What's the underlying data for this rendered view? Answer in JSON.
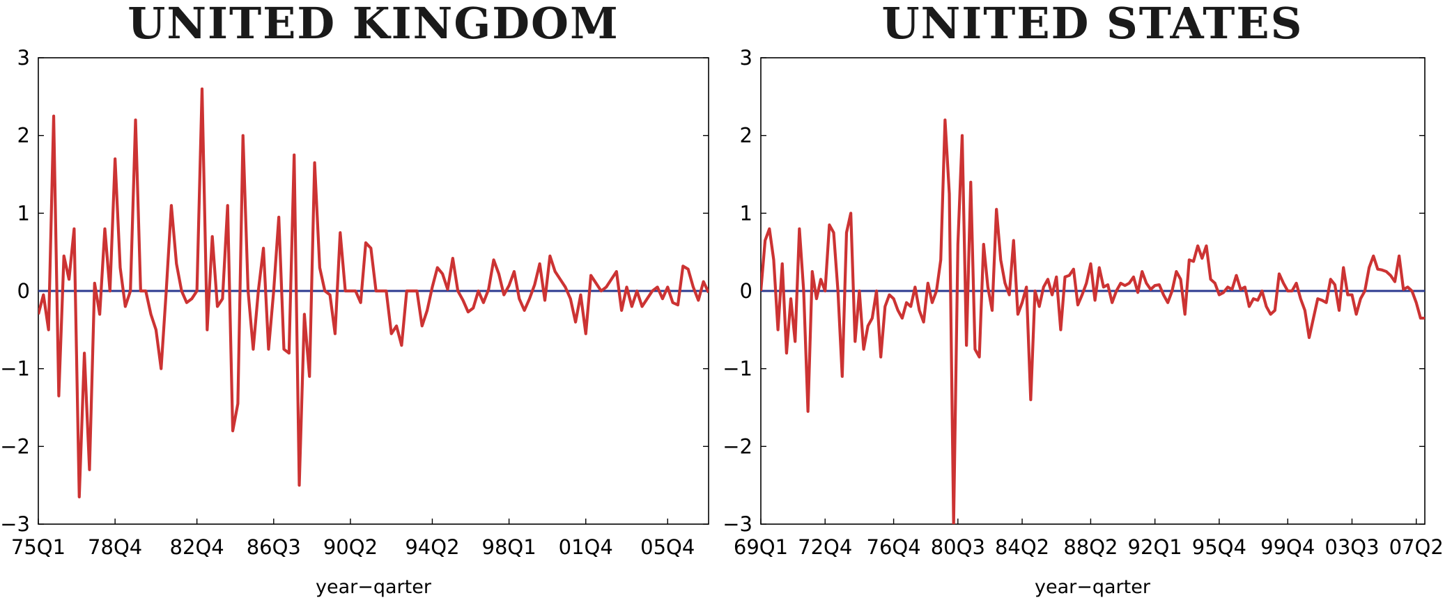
{
  "colors": {
    "series": "#cc3333",
    "zero_line": "#2b3a8f",
    "frame": "#000000"
  },
  "chart_data": [
    {
      "type": "line",
      "title": "UNITED KINGDOM",
      "xlabel": "year−qarter",
      "ylabel": "",
      "ylim": [
        -3,
        3
      ],
      "yticks": [
        "3",
        "2",
        "1",
        "0",
        "−1",
        "−2",
        "−3"
      ],
      "ytick_values": [
        3,
        2,
        1,
        0,
        -1,
        -2,
        -3
      ],
      "xtick_labels": [
        "75Q1",
        "78Q4",
        "82Q4",
        "86Q3",
        "90Q2",
        "94Q2",
        "98Q1",
        "01Q4",
        "05Q4"
      ],
      "xtick_index": [
        0,
        15,
        31,
        46,
        61,
        77,
        92,
        107,
        123
      ],
      "zero_line": 0,
      "series": [
        {
          "values": [
            -0.3,
            -0.05,
            -0.5,
            2.25,
            -1.35,
            0.45,
            0.15,
            0.8,
            -2.65,
            -0.8,
            -2.3,
            0.1,
            -0.3,
            0.8,
            0.0,
            1.7,
            0.3,
            -0.2,
            0.0,
            2.2,
            0.0,
            0.0,
            -0.3,
            -0.5,
            -1.0,
            0.0,
            1.1,
            0.35,
            0.0,
            -0.15,
            -0.1,
            0.0,
            2.6,
            -0.5,
            0.7,
            -0.2,
            -0.1,
            1.1,
            -1.8,
            -1.45,
            2.0,
            0.0,
            -0.75,
            0.0,
            0.55,
            -0.75,
            0.0,
            0.95,
            -0.75,
            -0.8,
            1.75,
            -2.5,
            -0.3,
            -1.1,
            1.65,
            0.3,
            0.0,
            -0.05,
            -0.55,
            0.75,
            0.0,
            0.0,
            0.0,
            -0.15,
            0.62,
            0.55,
            0.0,
            0.0,
            0.0,
            -0.55,
            -0.45,
            -0.7,
            0.0,
            0.0,
            0.0,
            -0.45,
            -0.25,
            0.05,
            0.3,
            0.22,
            0.02,
            0.42,
            0.0,
            -0.12,
            -0.27,
            -0.22,
            0.0,
            -0.15,
            0.02,
            0.4,
            0.22,
            -0.05,
            0.07,
            0.25,
            -0.1,
            -0.25,
            -0.1,
            0.08,
            0.35,
            -0.12,
            0.45,
            0.25,
            0.15,
            0.05,
            -0.1,
            -0.4,
            -0.05,
            -0.55,
            0.2,
            0.1,
            0.0,
            0.05,
            0.15,
            0.25,
            -0.25,
            0.05,
            -0.2,
            0.0,
            -0.2,
            -0.1,
            0.0,
            0.05,
            -0.1,
            0.05,
            -0.15,
            -0.18,
            0.32,
            0.28,
            0.05,
            -0.12,
            0.12,
            -0.02
          ]
        }
      ]
    },
    {
      "type": "line",
      "title": "UNITED STATES",
      "xlabel": "year−qarter",
      "ylabel": "",
      "ylim": [
        -3,
        3
      ],
      "yticks": [
        "3",
        "2",
        "1",
        "0",
        "−1",
        "−2",
        "−3"
      ],
      "ytick_values": [
        3,
        2,
        1,
        0,
        -1,
        -2,
        -3
      ],
      "xtick_labels": [
        "69Q1",
        "72Q4",
        "76Q4",
        "80Q3",
        "84Q2",
        "88Q2",
        "92Q1",
        "95Q4",
        "99Q4",
        "03Q3",
        "07Q2"
      ],
      "xtick_index": [
        0,
        15,
        31,
        46,
        61,
        77,
        92,
        107,
        123,
        138,
        153
      ],
      "zero_line": 0,
      "series": [
        {
          "values": [
            0.0,
            0.65,
            0.8,
            0.4,
            -0.5,
            0.35,
            -0.8,
            -0.1,
            -0.65,
            0.8,
            0.0,
            -1.55,
            0.25,
            -0.1,
            0.15,
            0.0,
            0.85,
            0.75,
            0.0,
            -1.1,
            0.75,
            1.0,
            -0.65,
            0.0,
            -0.75,
            -0.45,
            -0.35,
            0.0,
            -0.85,
            -0.2,
            -0.05,
            -0.1,
            -0.25,
            -0.35,
            -0.15,
            -0.2,
            0.05,
            -0.25,
            -0.4,
            0.1,
            -0.15,
            0.0,
            0.4,
            2.2,
            1.25,
            -3.0,
            0.6,
            2.0,
            -0.7,
            1.4,
            -0.75,
            -0.85,
            0.6,
            0.05,
            -0.25,
            1.05,
            0.4,
            0.1,
            -0.05,
            0.65,
            -0.3,
            -0.15,
            0.05,
            -1.4,
            0.0,
            -0.2,
            0.05,
            0.15,
            -0.05,
            0.18,
            -0.5,
            0.18,
            0.2,
            0.28,
            -0.18,
            -0.05,
            0.1,
            0.35,
            -0.12,
            0.3,
            0.05,
            0.08,
            -0.15,
            0.0,
            0.1,
            0.07,
            0.1,
            0.18,
            -0.02,
            0.25,
            0.1,
            0.02,
            0.07,
            0.08,
            -0.05,
            -0.15,
            0.0,
            0.25,
            0.15,
            -0.3,
            0.4,
            0.38,
            0.58,
            0.42,
            0.58,
            0.15,
            0.1,
            -0.05,
            -0.02,
            0.05,
            0.02,
            0.2,
            0.02,
            0.05,
            -0.2,
            -0.1,
            -0.12,
            0.0,
            -0.2,
            -0.3,
            -0.25,
            0.22,
            0.1,
            0.0,
            0.0,
            0.1,
            -0.1,
            -0.25,
            -0.6,
            -0.35,
            -0.1,
            -0.12,
            -0.15,
            0.15,
            0.08,
            -0.25,
            0.3,
            -0.05,
            -0.05,
            -0.3,
            -0.1,
            0.0,
            0.3,
            0.45,
            0.28,
            0.27,
            0.25,
            0.2,
            0.12,
            0.45,
            0.02,
            0.05,
            0.0,
            -0.15,
            -0.35,
            -0.35
          ]
        }
      ]
    }
  ]
}
